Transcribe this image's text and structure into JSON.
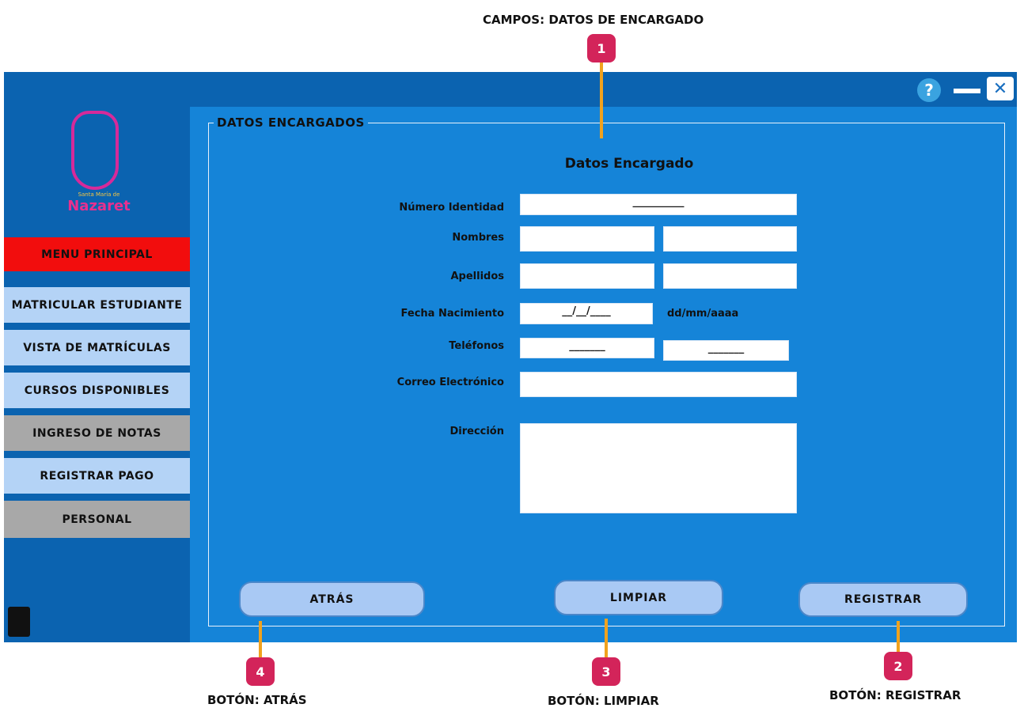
{
  "callouts": [
    {
      "number": "1",
      "label": "CAMPOS: DATOS DE ENCARGADO"
    },
    {
      "number": "2",
      "label": "BOTÓN: REGISTRAR"
    },
    {
      "number": "3",
      "label": "BOTÓN: LIMPIAR"
    },
    {
      "number": "4",
      "label": "BOTÓN: ATRÁS"
    }
  ],
  "window": {
    "help": "?"
  },
  "logo": {
    "line1": "Santa María de",
    "line2": "Nazaret"
  },
  "sidebar": {
    "header": "MENU PRINCIPAL",
    "items": [
      "MATRICULAR ESTUDIANTE",
      "VISTA DE MATRÍCULAS",
      "CURSOS DISPONIBLES",
      "INGRESO DE NOTAS",
      "REGISTRAR PAGO",
      "PERSONAL"
    ]
  },
  "form": {
    "legend": "DATOS ENCARGADOS",
    "heading": "Datos Encargado",
    "labels": [
      "Número Identidad",
      "Nombres",
      "Apellidos",
      "Fecha Nacimiento",
      "Teléfonos",
      "Correo Electrónico",
      "Dirección"
    ],
    "id_mask": "__________",
    "date_mask": "__/__/____",
    "date_hint": "dd/mm/aaaa",
    "phone_masks": [
      "_______",
      "_______"
    ]
  },
  "buttons": [
    "ATRÁS",
    "LIMPIAR",
    "REGISTRAR"
  ]
}
